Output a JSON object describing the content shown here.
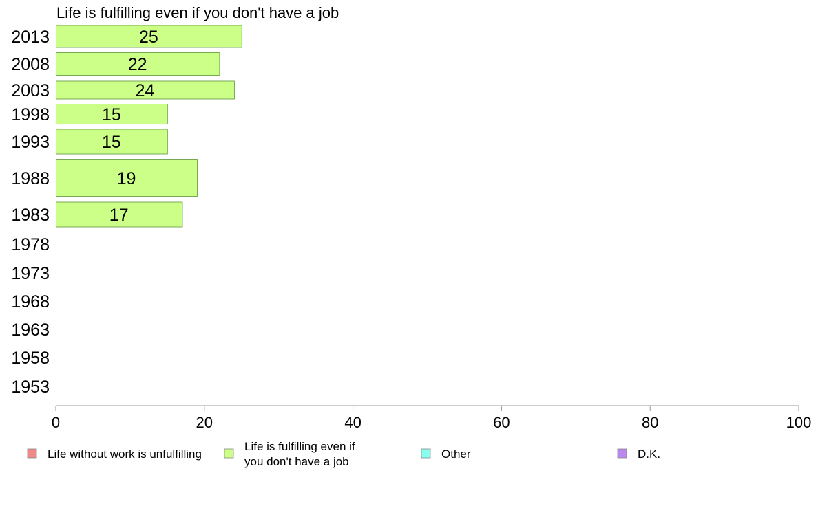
{
  "chart_data": {
    "type": "bar",
    "orientation": "horizontal",
    "title": "Life is fulfilling even if you don't have a job",
    "categories": [
      "2013",
      "2008",
      "2003",
      "1998",
      "1993",
      "1988",
      "1983",
      "1978",
      "1973",
      "1968",
      "1963",
      "1958",
      "1953"
    ],
    "series": [
      {
        "name": "Life is fulfilling even if you don't have a job",
        "values": [
          25,
          22,
          24,
          15,
          15,
          19,
          17,
          null,
          null,
          null,
          null,
          null,
          null
        ],
        "color": "#ccff88",
        "stroke": "#77aa55"
      }
    ],
    "xlim": [
      0,
      100
    ],
    "xticks": [
      0,
      20,
      40,
      60,
      80,
      100
    ],
    "grid": false,
    "legend": {
      "placement": "bottom",
      "items": [
        {
          "label": "Life without work is unfulfilling",
          "color": "#f08888"
        },
        {
          "label": "Life is fulfilling even if you don't have a job",
          "lines": [
            "Life is fulfilling even if",
            "you don't have a job"
          ],
          "color": "#ccff88"
        },
        {
          "label": "Other",
          "color": "#88ffee"
        },
        {
          "label": "D.K.",
          "color": "#bb88ee"
        }
      ]
    },
    "axis_color": "#999999"
  }
}
